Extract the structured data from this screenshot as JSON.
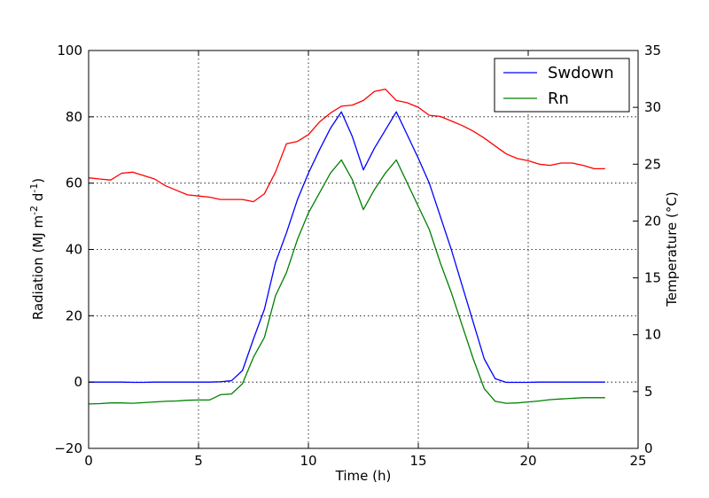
{
  "chart_data": {
    "type": "line",
    "xlabel": "Time (h)",
    "ylabel": {
      "base": "Radiation (MJ m",
      "exp1": "-2",
      "mid": " d",
      "exp2": "-1",
      "end": ")"
    },
    "y2label": "Temperature (°C)",
    "xlim": [
      0,
      25
    ],
    "ylim": [
      -20,
      100
    ],
    "y2lim": [
      0,
      35
    ],
    "xticks": [
      "0",
      "5",
      "10",
      "15",
      "20",
      "25"
    ],
    "yticks": [
      "−20",
      "0",
      "20",
      "40",
      "60",
      "80",
      "100"
    ],
    "y2ticks": [
      "0",
      "5",
      "10",
      "15",
      "20",
      "25",
      "30",
      "35"
    ],
    "grid": true,
    "legend_position": "top-right",
    "colors": {
      "Swdown": "#0000ff",
      "Rn": "#008000",
      "Temperature": "#ff0000"
    },
    "series": [
      {
        "name": "Swdown",
        "axis": "left",
        "x": [
          0,
          0.5,
          1,
          1.5,
          2,
          2.5,
          3,
          3.5,
          4,
          4.5,
          5,
          5.5,
          6,
          6.5,
          7,
          7.5,
          8,
          8.5,
          9,
          9.5,
          10,
          10.5,
          11,
          11.5,
          12,
          12.5,
          13,
          13.5,
          14,
          14.5,
          15,
          15.5,
          16,
          16.5,
          17,
          17.5,
          18,
          18.5,
          19,
          19.5,
          20,
          20.5,
          21,
          21.5,
          22,
          22.5,
          23,
          23.5
        ],
        "values": [
          0,
          0,
          0,
          0,
          -0.1,
          -0.1,
          0,
          0,
          0,
          0,
          0,
          0,
          0.1,
          0.4,
          3.5,
          13,
          22,
          36,
          45,
          55,
          63,
          70,
          76.5,
          81.5,
          74,
          64,
          70.5,
          76,
          81.5,
          74.5,
          67.5,
          60,
          50,
          40,
          29,
          18,
          7,
          1,
          -0.1,
          -0.1,
          -0.1,
          0,
          0,
          0,
          0,
          0,
          0,
          0
        ]
      },
      {
        "name": "Rn",
        "axis": "left",
        "x": [
          0,
          0.5,
          1,
          1.5,
          2,
          2.5,
          3,
          3.5,
          4,
          4.5,
          5,
          5.5,
          6,
          6.5,
          7,
          7.5,
          8,
          8.5,
          9,
          9.5,
          10,
          10.5,
          11,
          11.5,
          12,
          12.5,
          13,
          13.5,
          14,
          14.5,
          15,
          15.5,
          16,
          16.5,
          17,
          17.5,
          18,
          18.5,
          19,
          19.5,
          20,
          20.5,
          21,
          21.5,
          22,
          22.5,
          23,
          23.5
        ],
        "values": [
          -6.6,
          -6.5,
          -6.3,
          -6.3,
          -6.4,
          -6.2,
          -6.0,
          -5.8,
          -5.7,
          -5.5,
          -5.4,
          -5.4,
          -3.8,
          -3.6,
          -0.5,
          7.5,
          13.5,
          26,
          33,
          43,
          51,
          57,
          63,
          67,
          61,
          52,
          58,
          63,
          67,
          60,
          53,
          46,
          36,
          27,
          17,
          7,
          -2,
          -5.8,
          -6.4,
          -6.3,
          -6.0,
          -5.7,
          -5.3,
          -5.1,
          -4.9,
          -4.7,
          -4.7,
          -4.7
        ]
      },
      {
        "name": "Temperature",
        "axis": "right",
        "x": [
          0,
          0.5,
          1,
          1.5,
          2,
          2.5,
          3,
          3.5,
          4,
          4.5,
          5,
          5.5,
          6,
          6.5,
          7,
          7.5,
          8,
          8.5,
          9,
          9.5,
          10,
          10.5,
          11,
          11.5,
          12,
          12.5,
          13,
          13.5,
          14,
          14.5,
          15,
          15.5,
          16,
          16.5,
          17,
          17.5,
          18,
          18.5,
          19,
          19.5,
          20,
          20.5,
          21,
          21.5,
          22,
          22.5,
          23,
          23.5
        ],
        "values": [
          23.8,
          23.7,
          23.6,
          24.2,
          24.3,
          24.0,
          23.7,
          23.1,
          22.7,
          22.3,
          22.2,
          22.1,
          21.9,
          21.9,
          21.9,
          21.7,
          22.4,
          24.3,
          26.8,
          27.0,
          27.6,
          28.7,
          29.5,
          30.1,
          30.2,
          30.6,
          31.4,
          31.6,
          30.6,
          30.4,
          30.0,
          29.3,
          29.2,
          28.8,
          28.4,
          27.9,
          27.3,
          26.6,
          25.9,
          25.5,
          25.3,
          25.0,
          24.9,
          25.1,
          25.1,
          24.9,
          24.6,
          24.6
        ]
      }
    ]
  }
}
